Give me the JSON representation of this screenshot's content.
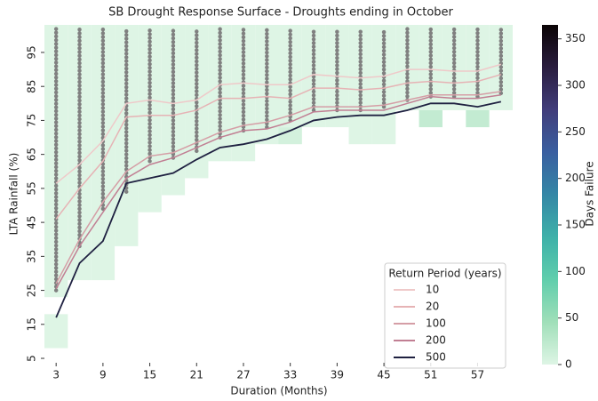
{
  "chart_data": {
    "type": "line",
    "title": "SB Drought Response Surface - Droughts ending in October",
    "x_label": "Duration (Months)",
    "y_label": "LTA Rainfall (%)",
    "xlim": [
      1.5,
      61.5
    ],
    "ylim": [
      3.7,
      103.1
    ],
    "xticks": [
      3,
      9,
      15,
      21,
      27,
      33,
      39,
      45,
      51,
      57
    ],
    "yticks": [
      5,
      15,
      25,
      35,
      45,
      55,
      65,
      75,
      85,
      95
    ],
    "x": [
      3,
      6,
      9,
      12,
      15,
      18,
      21,
      24,
      27,
      30,
      33,
      36,
      39,
      42,
      45,
      48,
      51,
      54,
      57,
      60
    ],
    "legend": {
      "title": "Return Period (years)",
      "corner": "lower right"
    },
    "series": [
      {
        "name": "10",
        "color": "#efc9c9",
        "values": [
          56.5,
          62,
          69,
          80,
          81,
          80,
          81,
          85.5,
          86,
          85.5,
          85.5,
          88.5,
          88,
          87.5,
          88,
          90,
          90,
          89.5,
          89.5,
          91.5
        ]
      },
      {
        "name": "20",
        "color": "#e6b3b5",
        "values": [
          46,
          55,
          63,
          76,
          76.5,
          76.5,
          78,
          81.5,
          81.5,
          82,
          81.5,
          84.5,
          84.5,
          84,
          84.5,
          86,
          86.5,
          86,
          86.5,
          88.5
        ]
      },
      {
        "name": "100",
        "color": "#d59ea6",
        "values": [
          27,
          40,
          51,
          60,
          64.5,
          65.5,
          68.5,
          71.5,
          73.5,
          74.5,
          76.5,
          79,
          79,
          79,
          79.5,
          81,
          82.5,
          82.5,
          82.5,
          83.5
        ]
      },
      {
        "name": "200",
        "color": "#c17f93",
        "values": [
          25.5,
          38,
          48,
          58,
          62,
          64,
          67,
          70,
          72,
          72.5,
          74.5,
          77.5,
          78,
          78,
          78,
          80,
          82,
          81.5,
          81.5,
          82.5
        ]
      },
      {
        "name": "500",
        "color": "#1f2141",
        "values": [
          17,
          33,
          39.5,
          56.5,
          58,
          59.5,
          63.5,
          67,
          68,
          69.5,
          72,
          75,
          76,
          76.5,
          76.5,
          78,
          80,
          80,
          79,
          80.5
        ]
      }
    ],
    "samples": {
      "color": "#808080",
      "low": [
        25,
        38,
        49,
        54,
        63,
        64,
        66,
        70,
        72,
        73,
        75,
        78,
        78,
        78,
        79,
        81,
        82,
        82,
        82,
        83
      ],
      "high": [
        102,
        102,
        102,
        102,
        102,
        102,
        102,
        102,
        102,
        102,
        102,
        102,
        102,
        102,
        102,
        102,
        102,
        102,
        102,
        102
      ]
    },
    "surface": [
      {
        "x": 3,
        "y0": 8,
        "y1": 18,
        "days": 0
      },
      {
        "x": 3,
        "y0": 23,
        "y1": 103.1,
        "days": 0
      },
      {
        "x": 6,
        "y0": 28,
        "y1": 103.1,
        "days": 0
      },
      {
        "x": 9,
        "y0": 28,
        "y1": 103.1,
        "days": 0
      },
      {
        "x": 12,
        "y0": 38,
        "y1": 103.1,
        "days": 0
      },
      {
        "x": 15,
        "y0": 48,
        "y1": 103.1,
        "days": 0
      },
      {
        "x": 18,
        "y0": 53,
        "y1": 103.1,
        "days": 0
      },
      {
        "x": 21,
        "y0": 58,
        "y1": 103.1,
        "days": 0
      },
      {
        "x": 24,
        "y0": 63,
        "y1": 103.1,
        "days": 0
      },
      {
        "x": 27,
        "y0": 63,
        "y1": 103.1,
        "days": 0
      },
      {
        "x": 30,
        "y0": 68,
        "y1": 103.1,
        "days": 0
      },
      {
        "x": 33,
        "y0": 68,
        "y1": 73,
        "days": 8
      },
      {
        "x": 33,
        "y0": 73,
        "y1": 103.1,
        "days": 0
      },
      {
        "x": 36,
        "y0": 73,
        "y1": 103.1,
        "days": 0
      },
      {
        "x": 39,
        "y0": 73,
        "y1": 103.1,
        "days": 0
      },
      {
        "x": 42,
        "y0": 68,
        "y1": 103.1,
        "days": 0
      },
      {
        "x": 45,
        "y0": 68,
        "y1": 103.1,
        "days": 0
      },
      {
        "x": 48,
        "y0": 78,
        "y1": 103.1,
        "days": 0
      },
      {
        "x": 51,
        "y0": 73,
        "y1": 78,
        "days": 20
      },
      {
        "x": 51,
        "y0": 78,
        "y1": 103.1,
        "days": 0
      },
      {
        "x": 54,
        "y0": 78,
        "y1": 103.1,
        "days": 0
      },
      {
        "x": 57,
        "y0": 73,
        "y1": 78,
        "days": 20
      },
      {
        "x": 57,
        "y0": 78,
        "y1": 103.1,
        "days": 0
      },
      {
        "x": 60,
        "y0": 78,
        "y1": 103.1,
        "days": 0
      }
    ],
    "colorbar": {
      "label": "Days Failure",
      "lim": [
        0,
        365
      ],
      "ticks": [
        0,
        50,
        100,
        150,
        200,
        250,
        300,
        350
      ],
      "stops": [
        "#def5e5",
        "#a0dfb9",
        "#60ceac",
        "#3eb1a9",
        "#3487a6",
        "#3a5fa0",
        "#413d7b",
        "#2a1d3f",
        "#0b0405"
      ]
    }
  }
}
